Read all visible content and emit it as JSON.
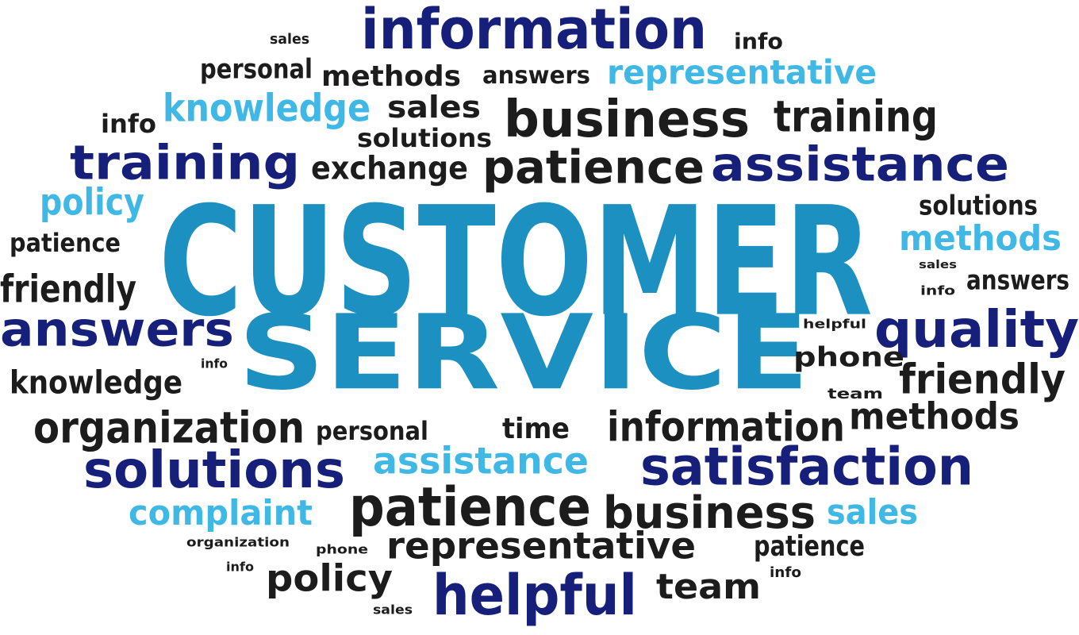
{
  "colors": {
    "navy": "#16207a",
    "black": "#1c1c1c",
    "light_blue": "#40b8e6",
    "teal": "#1d90c2"
  },
  "words": [
    {
      "text": "CUSTOMER",
      "color": "teal"
    },
    {
      "text": "SERVICE",
      "color": "teal"
    },
    {
      "text": "information",
      "color": "navy"
    },
    {
      "text": "info",
      "color": "black"
    },
    {
      "text": "sales",
      "color": "black"
    },
    {
      "text": "personal",
      "color": "black"
    },
    {
      "text": "methods",
      "color": "black"
    },
    {
      "text": "answers",
      "color": "black"
    },
    {
      "text": "representative",
      "color": "light_blue"
    },
    {
      "text": "knowledge",
      "color": "light_blue"
    },
    {
      "text": "sales",
      "color": "black"
    },
    {
      "text": "business",
      "color": "black"
    },
    {
      "text": "training",
      "color": "black"
    },
    {
      "text": "info",
      "color": "black"
    },
    {
      "text": "solutions",
      "color": "black"
    },
    {
      "text": "training",
      "color": "navy"
    },
    {
      "text": "exchange",
      "color": "black"
    },
    {
      "text": "patience",
      "color": "black"
    },
    {
      "text": "assistance",
      "color": "navy"
    },
    {
      "text": "policy",
      "color": "light_blue"
    },
    {
      "text": "solutions",
      "color": "black"
    },
    {
      "text": "patience",
      "color": "black"
    },
    {
      "text": "methods",
      "color": "light_blue"
    },
    {
      "text": "sales",
      "color": "black"
    },
    {
      "text": "friendly",
      "color": "black"
    },
    {
      "text": "answers",
      "color": "black"
    },
    {
      "text": "info",
      "color": "black"
    },
    {
      "text": "answers",
      "color": "navy"
    },
    {
      "text": "helpful",
      "color": "black"
    },
    {
      "text": "quality",
      "color": "navy"
    },
    {
      "text": "info",
      "color": "black"
    },
    {
      "text": "phone",
      "color": "black"
    },
    {
      "text": "knowledge",
      "color": "black"
    },
    {
      "text": "friendly",
      "color": "black"
    },
    {
      "text": "team",
      "color": "black"
    },
    {
      "text": "organization",
      "color": "black"
    },
    {
      "text": "personal",
      "color": "black"
    },
    {
      "text": "time",
      "color": "black"
    },
    {
      "text": "information",
      "color": "black"
    },
    {
      "text": "methods",
      "color": "black"
    },
    {
      "text": "solutions",
      "color": "navy"
    },
    {
      "text": "assistance",
      "color": "light_blue"
    },
    {
      "text": "satisfaction",
      "color": "navy"
    },
    {
      "text": "complaint",
      "color": "light_blue"
    },
    {
      "text": "patience",
      "color": "black"
    },
    {
      "text": "business",
      "color": "black"
    },
    {
      "text": "sales",
      "color": "light_blue"
    },
    {
      "text": "organization",
      "color": "black"
    },
    {
      "text": "phone",
      "color": "black"
    },
    {
      "text": "representative",
      "color": "black"
    },
    {
      "text": "patience",
      "color": "black"
    },
    {
      "text": "info",
      "color": "black"
    },
    {
      "text": "policy",
      "color": "black"
    },
    {
      "text": "helpful",
      "color": "navy"
    },
    {
      "text": "team",
      "color": "black"
    },
    {
      "text": "info",
      "color": "black"
    },
    {
      "text": "sales",
      "color": "black"
    }
  ]
}
